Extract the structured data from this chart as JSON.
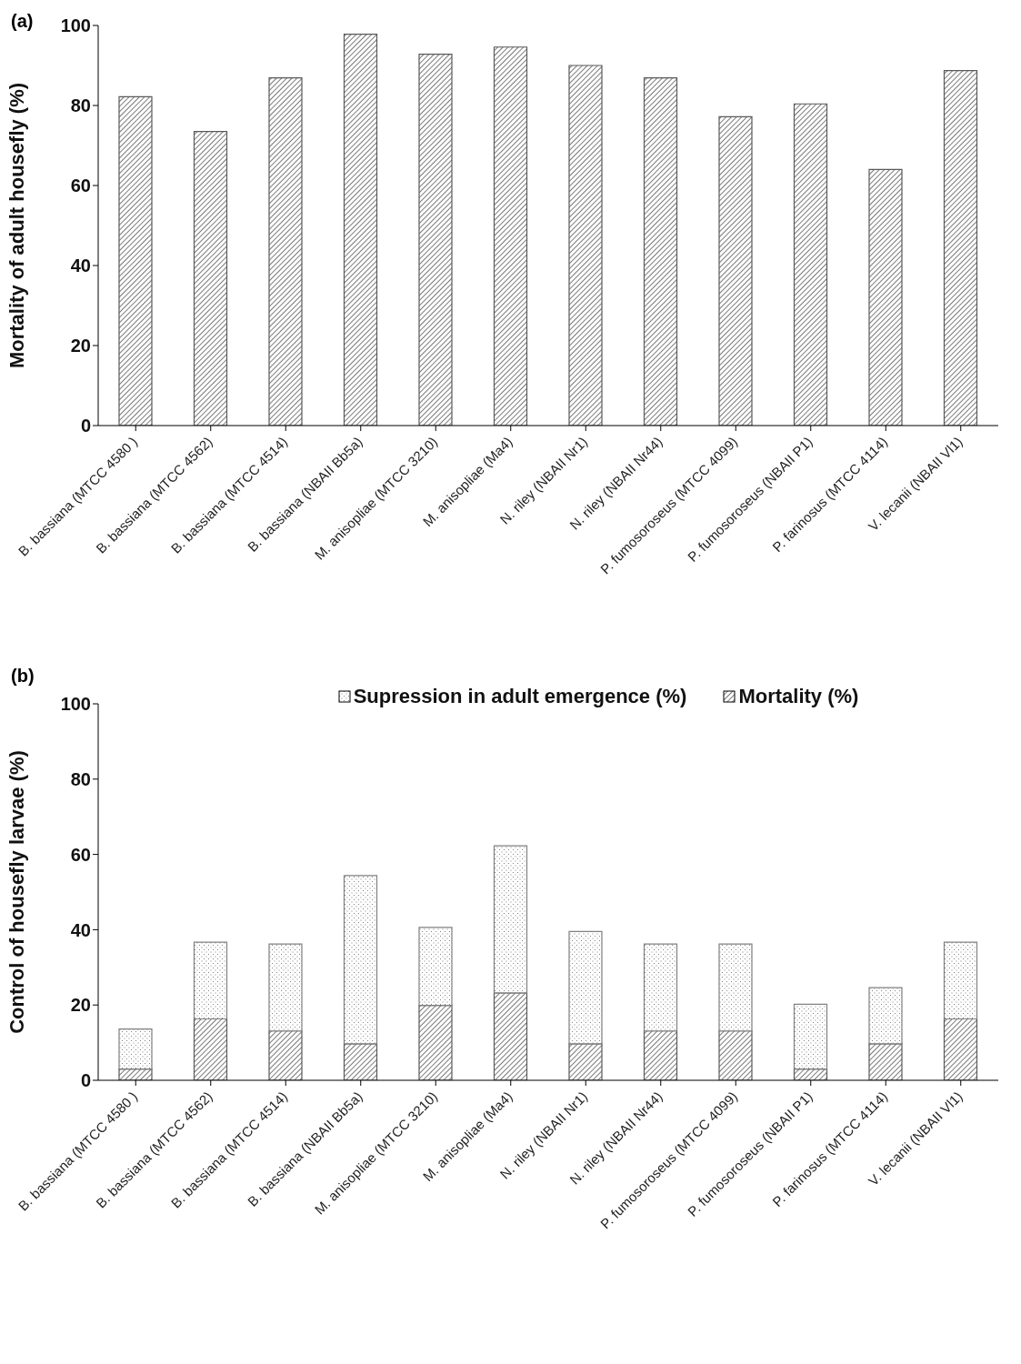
{
  "chart_data": [
    {
      "type": "bar",
      "annotations": [
        "(a)"
      ],
      "ylabel": "Mortality of adult housefly (%)",
      "categories": [
        "B. bassiana (MTCC 4580 )",
        "B. bassiana (MTCC 4562)",
        "B. bassiana (MTCC 4514)",
        "B. bassiana (NBAII Bb5a)",
        "M. anisopliae (MTCC 3210)",
        "M. anisopliae (Ma4)",
        "N. riley (NBAII Nr1)",
        "N. riley (NBAII Nr44)",
        "P. fumosoroseus (MTCC 4099)",
        "P. fumosoroseus (NBAII P1)",
        "P. farinosus (MTCC 4114)",
        "V. lecanii (NBAII Vl1)"
      ],
      "values": [
        82.2,
        73.5,
        86.9,
        97.8,
        92.8,
        94.6,
        90,
        86.9,
        77.2,
        80.4,
        64,
        88.7
      ],
      "color": "#595959",
      "ylim": [
        0,
        100
      ],
      "yticks": [
        0,
        20,
        40,
        60,
        80,
        100
      ],
      "grid": false,
      "legend": false
    },
    {
      "type": "bar",
      "annotations": [
        "(b)"
      ],
      "ylabel": "Control of housefly larvae (%)",
      "stacked": true,
      "categories": [
        "B. bassiana (MTCC 4580 )",
        "B. bassiana (MTCC 4562)",
        "B. bassiana (MTCC 4514)",
        "B. bassiana (NBAII Bb5a)",
        "M. anisopliae (MTCC 3210)",
        "M. anisopliae (Ma4)",
        "N. riley (NBAII Nr1)",
        "N. riley (NBAII Nr44)",
        "P. fumosoroseus (MTCC 4099)",
        "P. fumosoroseus (NBAII P1)",
        "P. farinosus (MTCC 4114)",
        "V. lecanii (NBAII Vl1)"
      ],
      "series": [
        {
          "name": "Mortality (%)",
          "color": "#595959",
          "values": [
            3,
            16.3,
            13.1,
            9.7,
            19.9,
            23.2,
            9.7,
            13.1,
            13.1,
            3,
            9.7,
            16.3
          ]
        },
        {
          "name": "Supression in adult emergence (%)",
          "color": "#808080",
          "values": [
            10.6,
            20.4,
            23.1,
            44.7,
            20.7,
            39.1,
            29.8,
            23.1,
            23.1,
            17.2,
            14.9,
            20.4
          ]
        }
      ],
      "ylim": [
        0,
        100
      ],
      "yticks": [
        0,
        20,
        40,
        60,
        80,
        100
      ],
      "grid": false,
      "legend": "top"
    }
  ]
}
